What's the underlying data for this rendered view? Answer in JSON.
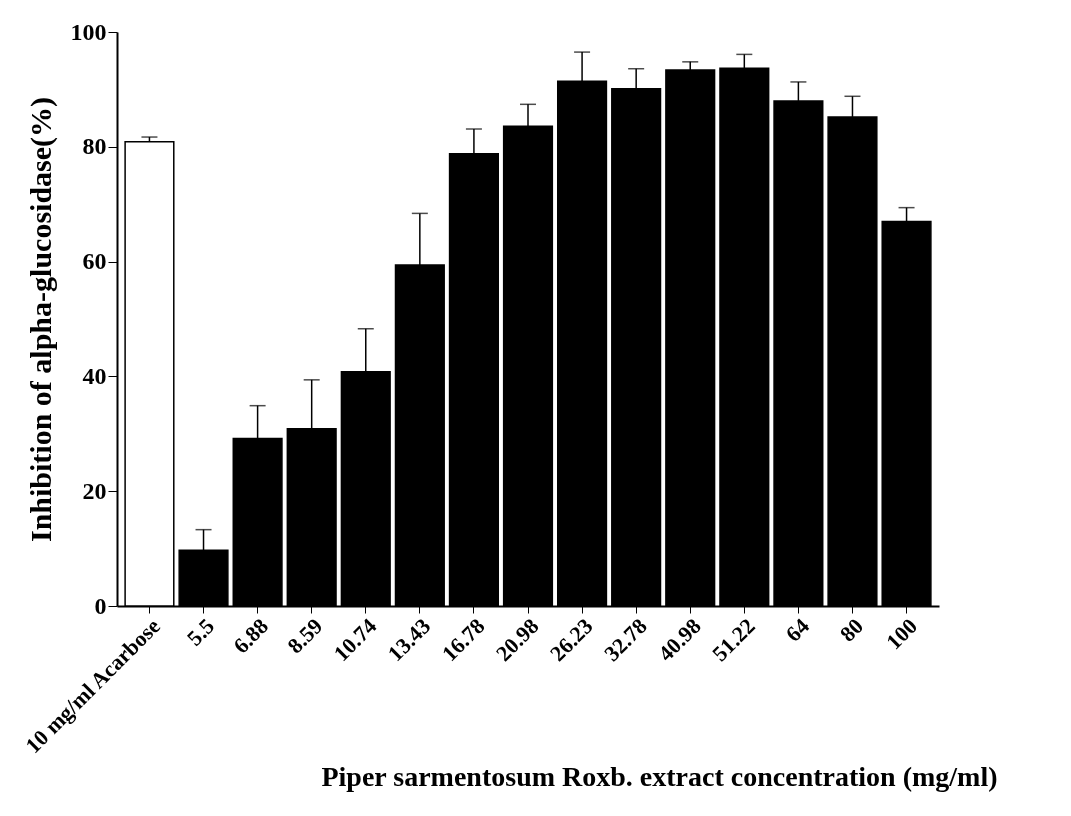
{
  "chart_data": {
    "type": "bar",
    "categories": [
      "10 mg/ml Acarbose",
      "5.5",
      "6.88",
      "8.59",
      "10.74",
      "13.43",
      "16.78",
      "20.98",
      "26.23",
      "32.78",
      "40.98",
      "51.22",
      "64",
      "80",
      "100"
    ],
    "values": [
      80.9,
      9.7,
      29.2,
      30.9,
      40.8,
      59.4,
      78.8,
      83.6,
      91.4,
      90.1,
      93.4,
      93.7,
      88.0,
      85.2,
      67.0
    ],
    "errors": [
      [
        80.9,
        81.7
      ],
      [
        9.7,
        13.3
      ],
      [
        29.2,
        34.9
      ],
      [
        30.9,
        39.4
      ],
      [
        40.8,
        48.3
      ],
      [
        59.4,
        68.4
      ],
      [
        78.8,
        83.1
      ],
      [
        83.6,
        87.4
      ],
      [
        91.4,
        96.5
      ],
      [
        90.1,
        93.6
      ],
      [
        93.4,
        94.8
      ],
      [
        93.7,
        96.1
      ],
      [
        88.0,
        91.3
      ],
      [
        85.2,
        88.8
      ],
      [
        67.0,
        69.4
      ]
    ],
    "colors": [
      "#ffffff",
      "#000000",
      "#000000",
      "#000000",
      "#000000",
      "#000000",
      "#000000",
      "#000000",
      "#000000",
      "#000000",
      "#000000",
      "#000000",
      "#000000",
      "#000000",
      "#000000"
    ],
    "xlabel": "Piper sarmentosum Roxb. extract concentration (mg/ml)",
    "ylabel": "Inhibition of alpha-glucosidase(%)",
    "ylim": [
      0,
      100
    ],
    "yticks": [
      0,
      20,
      40,
      60,
      80,
      100
    ],
    "grid": false
  }
}
